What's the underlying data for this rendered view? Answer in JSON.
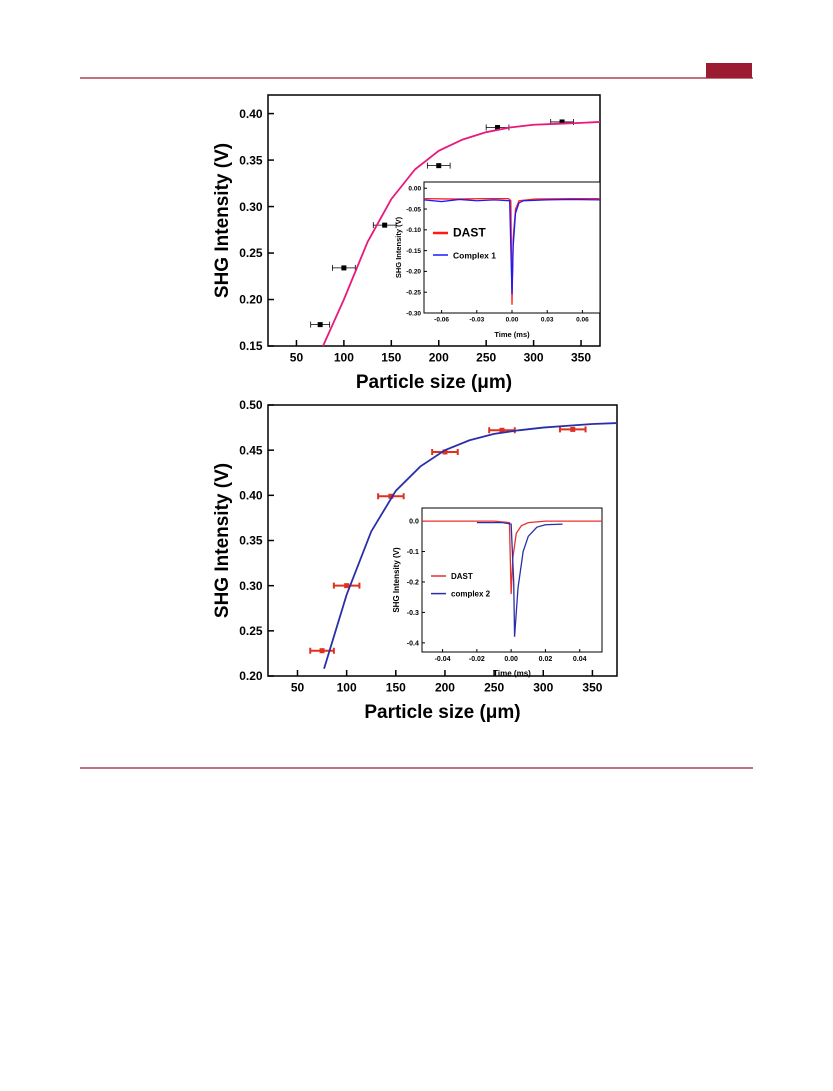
{
  "chart_data": [
    {
      "type": "scatter",
      "xlabel": "Particle size (μm)",
      "ylabel": "SHG Intensity (V)",
      "xlim": [
        20,
        370
      ],
      "ylim": [
        0.15,
        0.42
      ],
      "xticks": [
        50,
        100,
        150,
        200,
        250,
        300,
        350
      ],
      "yticks": [
        {
          "value": 0.15,
          "label": "0.15"
        },
        {
          "value": 0.2,
          "label": "0.20"
        },
        {
          "value": 0.25,
          "label": "0.25"
        },
        {
          "value": 0.3,
          "label": "0.30"
        },
        {
          "value": 0.35,
          "label": "0.35"
        },
        {
          "value": 0.4,
          "label": "0.40"
        }
      ],
      "series": [
        {
          "mode": "markers",
          "color": "#000000",
          "x": [
            75,
            100,
            143,
            200,
            262,
            330
          ],
          "values": [
            0.173,
            0.234,
            0.28,
            0.344,
            0.385,
            0.391
          ],
          "xerr": [
            10,
            12,
            12,
            12,
            12,
            12
          ]
        },
        {
          "mode": "line",
          "color": "#e8197d",
          "x": [
            78,
            100,
            125,
            150,
            175,
            200,
            225,
            250,
            275,
            300,
            325,
            350,
            370
          ],
          "values": [
            0.15,
            0.2,
            0.262,
            0.308,
            0.34,
            0.36,
            0.372,
            0.38,
            0.385,
            0.388,
            0.389,
            0.39,
            0.391
          ]
        }
      ]
    },
    {
      "type": "scatter",
      "xlabel": "Particle size (μm)",
      "ylabel": "SHG Intensity (V)",
      "xlim": [
        20,
        375
      ],
      "ylim": [
        0.2,
        0.5
      ],
      "xticks": [
        50,
        100,
        150,
        200,
        250,
        300,
        350
      ],
      "yticks": [
        {
          "value": 0.2,
          "label": "0.20"
        },
        {
          "value": 0.25,
          "label": "0.25"
        },
        {
          "value": 0.3,
          "label": "0.30"
        },
        {
          "value": 0.35,
          "label": "0.35"
        },
        {
          "value": 0.4,
          "label": "0.40"
        },
        {
          "value": 0.45,
          "label": "0.45"
        },
        {
          "value": 0.5,
          "label": "0.50"
        }
      ],
      "series": [
        {
          "mode": "markers",
          "color": "#e03020",
          "x": [
            75,
            100,
            145,
            200,
            258,
            330
          ],
          "values": [
            0.228,
            0.3,
            0.399,
            0.448,
            0.472,
            0.473
          ],
          "xerr": [
            12,
            13,
            13,
            13,
            13,
            13
          ]
        },
        {
          "mode": "line",
          "color": "#2a2fa8",
          "x": [
            77,
            100,
            125,
            150,
            175,
            200,
            225,
            250,
            275,
            300,
            325,
            350,
            375
          ],
          "values": [
            0.208,
            0.29,
            0.36,
            0.405,
            0.432,
            0.45,
            0.461,
            0.468,
            0.472,
            0.475,
            0.477,
            0.479,
            0.48
          ]
        }
      ]
    },
    {
      "type": "line",
      "xlabel": "Time (ms)",
      "ylabel": "SHG Intensity (V)",
      "xlim": [
        -0.075,
        0.075
      ],
      "ylim": [
        -0.3,
        0.015
      ],
      "xticks": [
        {
          "value": -0.06,
          "label": "-0.06"
        },
        {
          "value": -0.03,
          "label": "-0.03"
        },
        {
          "value": 0,
          "label": "0.00"
        },
        {
          "value": 0.03,
          "label": "0.03"
        },
        {
          "value": 0.06,
          "label": "0.06"
        }
      ],
      "yticks": [
        {
          "value": -0.3,
          "label": "-0.30"
        },
        {
          "value": -0.25,
          "label": "-0.25"
        },
        {
          "value": -0.2,
          "label": "-0.20"
        },
        {
          "value": -0.15,
          "label": "-0.15"
        },
        {
          "value": -0.1,
          "label": "-0.10"
        },
        {
          "value": -0.05,
          "label": "-0.05"
        },
        {
          "value": 0,
          "label": "0.00"
        }
      ],
      "legend": "left",
      "series": [
        {
          "name": "DAST",
          "color": "#ff1a1a",
          "x": [
            -0.075,
            -0.05,
            -0.02,
            -0.003,
            -0.001,
            0,
            0.001,
            0.003,
            0.006,
            0.02,
            0.05,
            0.075
          ],
          "values": [
            -0.025,
            -0.026,
            -0.025,
            -0.025,
            -0.03,
            -0.28,
            -0.12,
            -0.05,
            -0.03,
            -0.026,
            -0.025,
            -0.025
          ]
        },
        {
          "name": "Complex 1",
          "color": "#1a1aff",
          "x": [
            -0.075,
            -0.06,
            -0.045,
            -0.03,
            -0.015,
            -0.002,
            0,
            0.001,
            0.003,
            0.006,
            0.01,
            0.03,
            0.05,
            0.075
          ],
          "values": [
            -0.028,
            -0.032,
            -0.027,
            -0.03,
            -0.028,
            -0.03,
            -0.255,
            -0.14,
            -0.06,
            -0.035,
            -0.03,
            -0.028,
            -0.027,
            -0.028
          ]
        }
      ]
    },
    {
      "type": "line",
      "xlabel": "Time (ms)",
      "ylabel": "SHG Intensity (V)",
      "xlim": [
        -0.052,
        0.053
      ],
      "ylim": [
        -0.43,
        0.043
      ],
      "xticks": [
        {
          "value": -0.04,
          "label": "-0.04"
        },
        {
          "value": -0.02,
          "label": "-0.02"
        },
        {
          "value": 0,
          "label": "0.00"
        },
        {
          "value": 0.02,
          "label": "0.02"
        },
        {
          "value": 0.04,
          "label": "0.04"
        }
      ],
      "yticks": [
        {
          "value": -0.4,
          "label": "-0.4"
        },
        {
          "value": -0.3,
          "label": "-0.3"
        },
        {
          "value": -0.2,
          "label": "-0.2"
        },
        {
          "value": -0.1,
          "label": "-0.1"
        },
        {
          "value": 0,
          "label": "0.0"
        }
      ],
      "legend": "left",
      "series": [
        {
          "name": "DAST",
          "color": "#e83030",
          "x": [
            -0.052,
            -0.03,
            -0.01,
            -0.001,
            0,
            0.001,
            0.003,
            0.006,
            0.01,
            0.02,
            0.053
          ],
          "values": [
            0,
            0,
            0,
            -0.005,
            -0.24,
            -0.12,
            -0.04,
            -0.015,
            -0.005,
            0,
            0
          ]
        },
        {
          "name": "complex 2",
          "color": "#2a2fa8",
          "x": [
            -0.02,
            -0.005,
            0,
            0.0015,
            0.002,
            0.004,
            0.007,
            0.01,
            0.015,
            0.02,
            0.03
          ],
          "values": [
            -0.005,
            -0.005,
            -0.01,
            -0.2,
            -0.38,
            -0.22,
            -0.1,
            -0.05,
            -0.02,
            -0.012,
            -0.01
          ]
        }
      ]
    }
  ]
}
